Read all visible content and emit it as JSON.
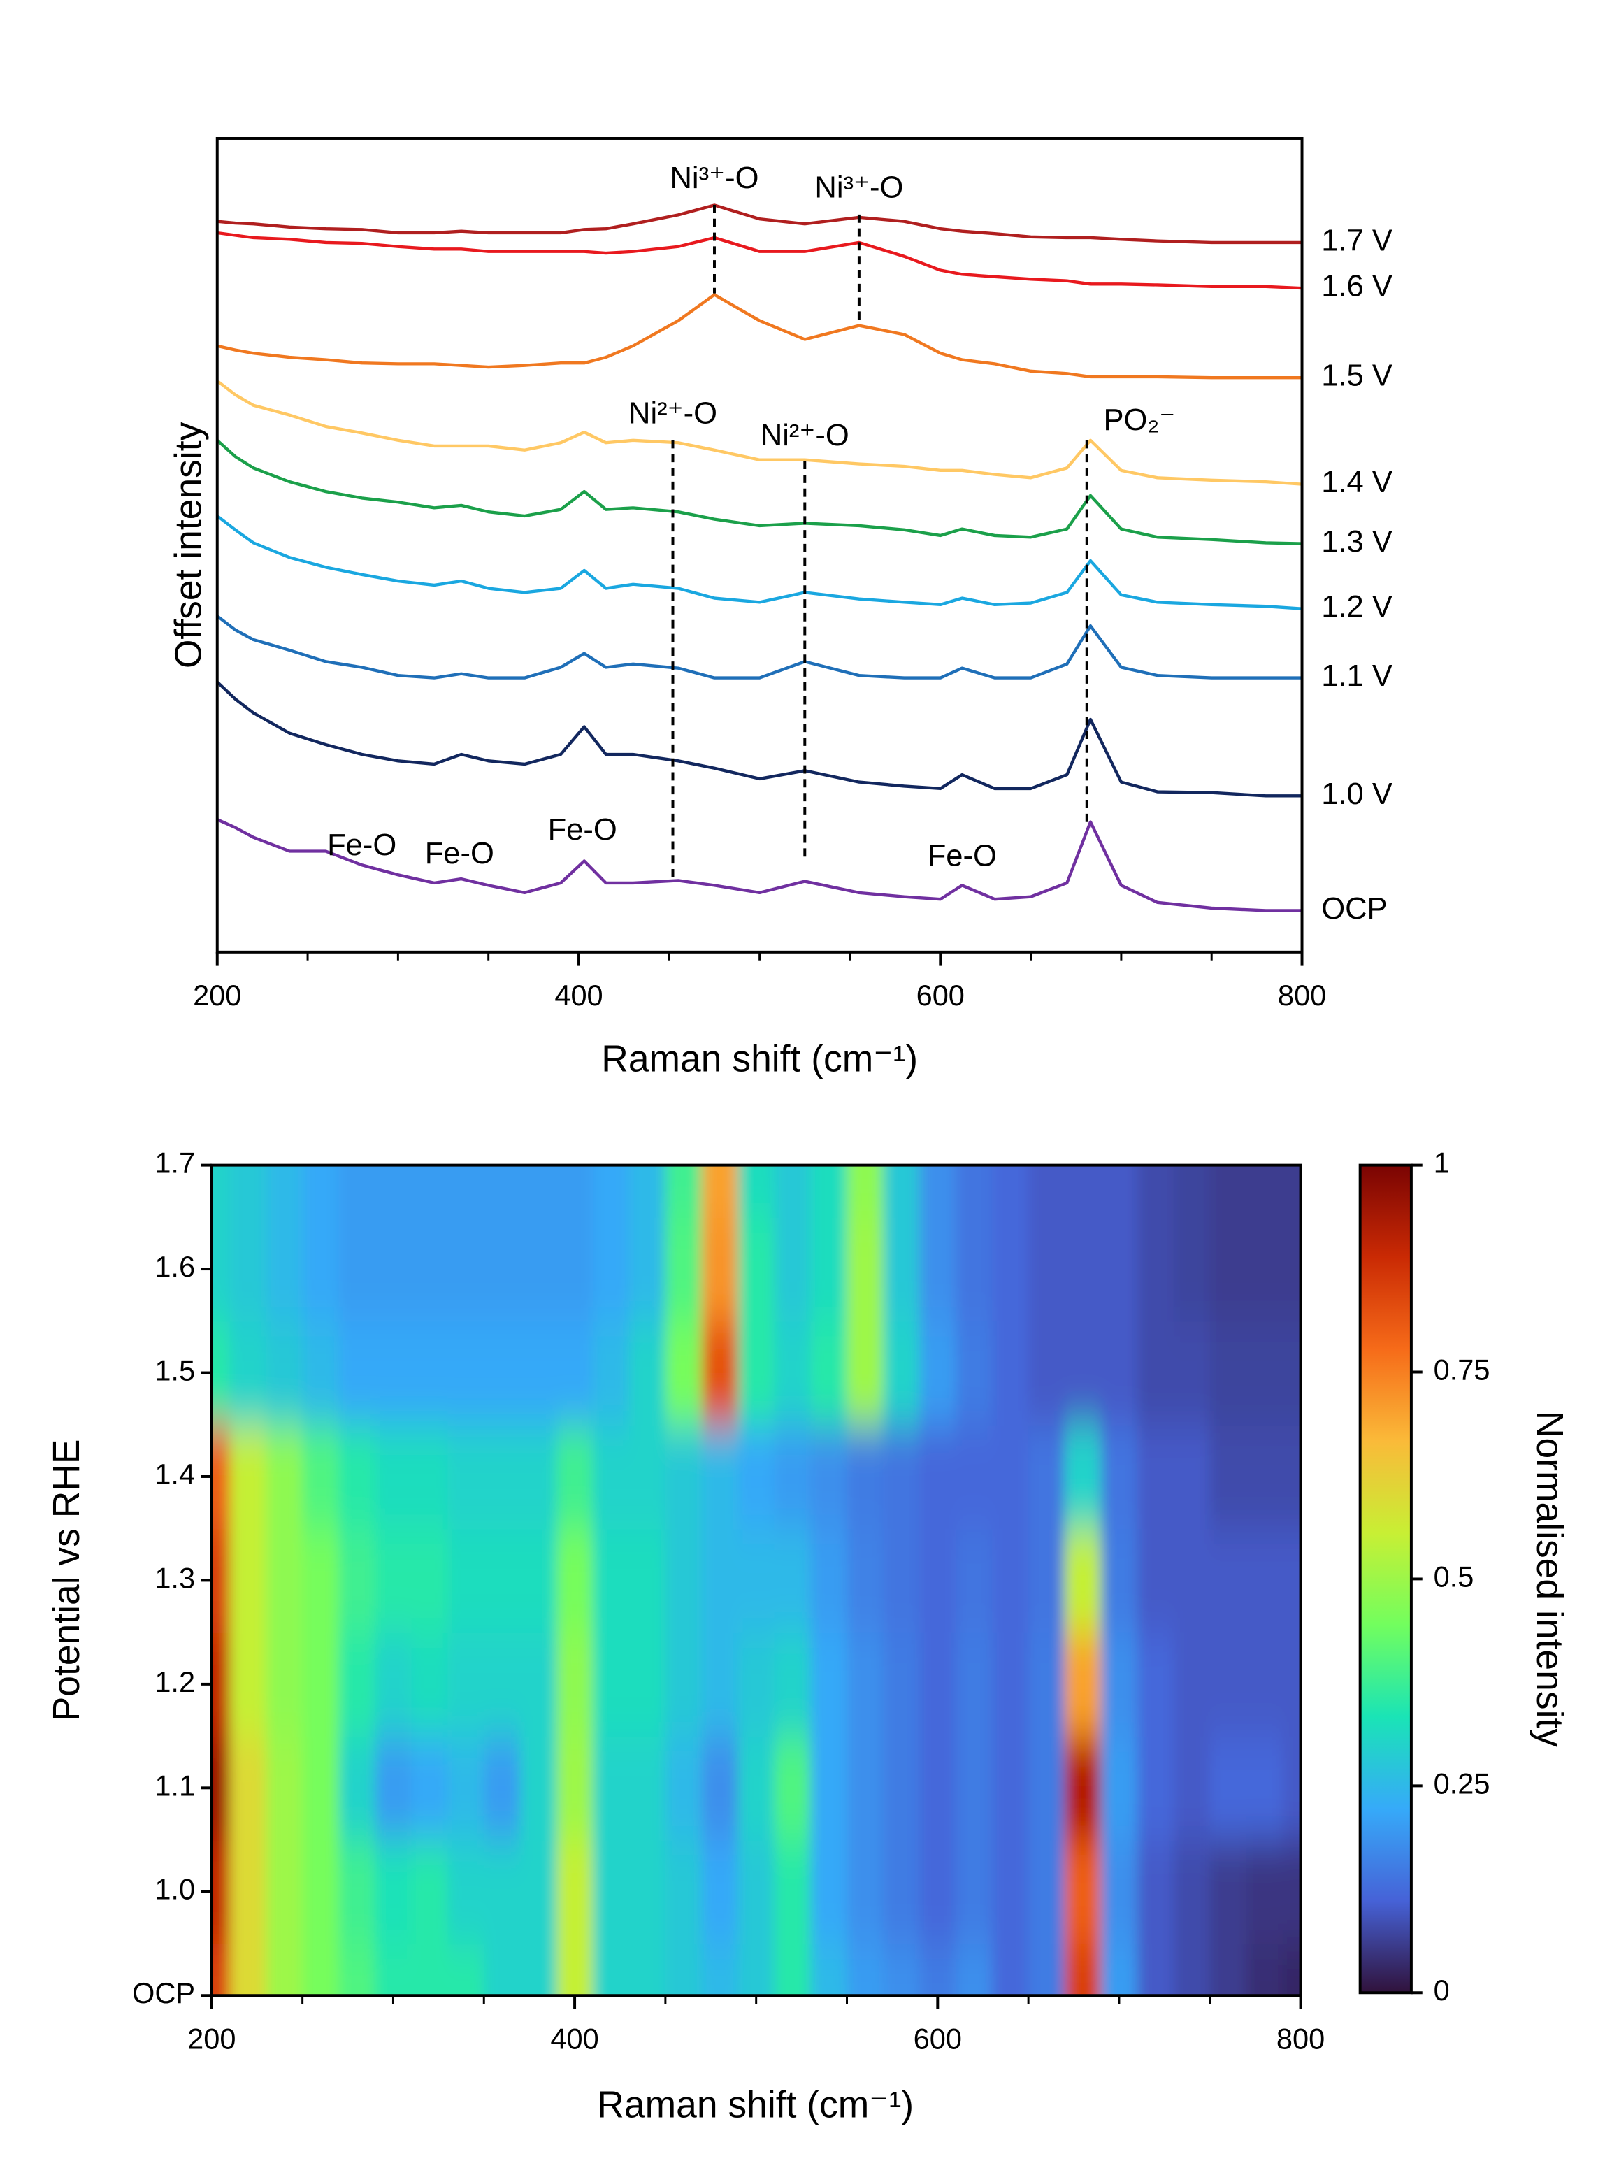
{
  "chart_data": [
    {
      "type": "line",
      "xlabel": "Raman shift (cm⁻¹)",
      "ylabel": "Offset intensity",
      "x": [
        200,
        210,
        220,
        240,
        260,
        280,
        300,
        320,
        335,
        350,
        370,
        390,
        403,
        415,
        430,
        455,
        475,
        500,
        525,
        555,
        580,
        600,
        612,
        630,
        650,
        670,
        683,
        700,
        720,
        750,
        780,
        800
      ],
      "xlim": [
        200,
        800
      ],
      "xticks": [
        200,
        400,
        600,
        800
      ],
      "xminorticks": [
        250,
        300,
        350,
        450,
        500,
        550,
        650,
        700,
        750
      ],
      "ylim": [
        0,
        100
      ],
      "series": [
        {
          "name": "1.7 V",
          "color": "#b01f1f",
          "values": [
            89.8,
            89.6,
            89.5,
            89.1,
            88.9,
            88.8,
            88.4,
            88.4,
            88.6,
            88.4,
            88.4,
            88.4,
            88.8,
            88.9,
            89.5,
            90.6,
            91.8,
            90.1,
            89.5,
            90.3,
            89.8,
            88.9,
            88.6,
            88.3,
            87.9,
            87.8,
            87.8,
            87.6,
            87.4,
            87.2,
            87.2,
            87.2
          ]
        },
        {
          "name": "1.6 V",
          "color": "#e8191e",
          "values": [
            88.4,
            88.1,
            87.8,
            87.6,
            87.2,
            87.1,
            86.7,
            86.4,
            86.4,
            86.1,
            86.1,
            86.1,
            86.1,
            85.9,
            86.1,
            86.7,
            87.8,
            86.1,
            86.1,
            87.2,
            85.5,
            83.8,
            83.3,
            83.0,
            82.7,
            82.5,
            82.1,
            82.1,
            82.0,
            81.8,
            81.8,
            81.6
          ]
        },
        {
          "name": "1.5 V",
          "color": "#f07820",
          "values": [
            74.5,
            74.0,
            73.6,
            73.1,
            72.8,
            72.4,
            72.3,
            72.3,
            72.1,
            71.9,
            72.1,
            72.4,
            72.4,
            73.1,
            74.5,
            77.6,
            80.8,
            77.6,
            75.3,
            77.0,
            75.9,
            73.6,
            72.8,
            72.3,
            71.4,
            71.1,
            70.7,
            70.7,
            70.7,
            70.6,
            70.6,
            70.6
          ]
        },
        {
          "name": "1.4 V",
          "color": "#ffc864",
          "values": [
            70.2,
            68.5,
            67.2,
            66.0,
            64.6,
            63.8,
            62.9,
            62.2,
            62.2,
            62.2,
            61.7,
            62.6,
            63.9,
            62.6,
            62.9,
            62.6,
            61.7,
            60.5,
            60.5,
            60.0,
            59.7,
            59.2,
            59.2,
            58.7,
            58.3,
            59.5,
            62.9,
            59.2,
            58.3,
            58.0,
            57.8,
            57.5
          ]
        },
        {
          "name": "1.3 V",
          "color": "#1ba04a",
          "values": [
            62.9,
            60.9,
            59.5,
            57.8,
            56.6,
            55.8,
            55.3,
            54.6,
            54.9,
            54.1,
            53.6,
            54.4,
            56.6,
            54.4,
            54.6,
            54.1,
            53.2,
            52.4,
            52.7,
            52.4,
            51.9,
            51.2,
            52.0,
            51.2,
            51.0,
            52.0,
            56.1,
            52.0,
            51.0,
            50.7,
            50.3,
            50.2
          ]
        },
        {
          "name": "1.2 V",
          "color": "#1aa7e0",
          "values": [
            53.6,
            51.9,
            50.3,
            48.5,
            47.3,
            46.4,
            45.6,
            45.1,
            45.6,
            44.7,
            44.2,
            44.7,
            46.9,
            44.7,
            45.2,
            44.7,
            43.5,
            43.0,
            44.2,
            43.4,
            43.0,
            42.7,
            43.5,
            42.7,
            42.9,
            44.2,
            48.1,
            43.9,
            43.0,
            42.7,
            42.5,
            42.2
          ]
        },
        {
          "name": "1.1 V",
          "color": "#1f6fb8",
          "values": [
            41.3,
            39.6,
            38.4,
            37.1,
            35.7,
            35.0,
            34.0,
            33.7,
            34.2,
            33.7,
            33.7,
            35.0,
            36.7,
            35.0,
            35.4,
            34.9,
            33.7,
            33.7,
            35.7,
            34.0,
            33.7,
            33.7,
            34.9,
            33.7,
            33.7,
            35.4,
            40.1,
            35.0,
            34.0,
            33.7,
            33.7,
            33.7
          ]
        },
        {
          "name": "1.0 V",
          "color": "#12275e",
          "values": [
            33.2,
            31.1,
            29.4,
            26.9,
            25.5,
            24.3,
            23.5,
            23.1,
            24.3,
            23.5,
            23.1,
            24.3,
            27.7,
            24.3,
            24.3,
            23.5,
            22.6,
            21.3,
            22.3,
            20.9,
            20.4,
            20.1,
            21.8,
            20.1,
            20.1,
            21.8,
            28.6,
            20.9,
            19.7,
            19.6,
            19.2,
            19.2
          ]
        },
        {
          "name": "OCP",
          "color": "#7030a0",
          "values": [
            16.3,
            15.3,
            14.1,
            12.4,
            12.4,
            10.7,
            9.5,
            8.5,
            9.0,
            8.2,
            7.3,
            8.5,
            11.2,
            8.5,
            8.5,
            8.8,
            8.2,
            7.3,
            8.7,
            7.3,
            6.8,
            6.5,
            8.2,
            6.5,
            6.8,
            8.5,
            16.0,
            8.2,
            6.1,
            5.4,
            5.1,
            5.1
          ]
        }
      ],
      "annotations": [
        {
          "text": "Ni³⁺-O",
          "x": 475,
          "dashed": true
        },
        {
          "text": "Ni³⁺-O",
          "x": 555,
          "dashed": true
        },
        {
          "text": "Ni²⁺-O",
          "x": 452,
          "dashed": true
        },
        {
          "text": "Ni²⁺-O",
          "x": 525,
          "dashed": true
        },
        {
          "text": "PO₂⁻",
          "x": 681,
          "dashed": true
        },
        {
          "text": "Fe-O",
          "x": 280,
          "dashed": false
        },
        {
          "text": "Fe-O",
          "x": 334,
          "dashed": false
        },
        {
          "text": "Fe-O",
          "x": 402,
          "dashed": false
        },
        {
          "text": "Fe-O",
          "x": 612,
          "dashed": false
        }
      ]
    },
    {
      "type": "heatmap",
      "xlabel": "Raman shift (cm⁻¹)",
      "ylabel": "Potential vs RHE",
      "zlabel": "Normalised intensity",
      "x": [
        200,
        220,
        240,
        260,
        280,
        300,
        320,
        340,
        360,
        380,
        400,
        420,
        440,
        460,
        480,
        500,
        520,
        540,
        560,
        580,
        600,
        620,
        640,
        660,
        680,
        700,
        720,
        740,
        760,
        780,
        800
      ],
      "xlim": [
        200,
        800
      ],
      "xticks": [
        200,
        400,
        600,
        800
      ],
      "xminorticks": [
        250,
        300,
        350,
        450,
        500,
        550,
        650,
        700,
        750
      ],
      "y": [
        "OCP",
        "1.0",
        "1.1",
        "1.2",
        "1.3",
        "1.4",
        "1.5",
        "1.6",
        "1.7"
      ],
      "z": [
        [
          0.85,
          0.6,
          0.5,
          0.45,
          0.4,
          0.35,
          0.35,
          0.35,
          0.3,
          0.3,
          0.55,
          0.3,
          0.3,
          0.28,
          0.25,
          0.28,
          0.35,
          0.25,
          0.2,
          0.18,
          0.15,
          0.18,
          0.12,
          0.15,
          0.85,
          0.2,
          0.1,
          0.08,
          0.06,
          0.04,
          0.03
        ],
        [
          0.9,
          0.6,
          0.5,
          0.45,
          0.38,
          0.33,
          0.35,
          0.3,
          0.3,
          0.3,
          0.55,
          0.3,
          0.3,
          0.28,
          0.22,
          0.28,
          0.35,
          0.22,
          0.18,
          0.15,
          0.12,
          0.15,
          0.12,
          0.15,
          0.8,
          0.18,
          0.1,
          0.08,
          0.06,
          0.05,
          0.05
        ],
        [
          0.95,
          0.6,
          0.5,
          0.45,
          0.3,
          0.2,
          0.22,
          0.25,
          0.2,
          0.3,
          0.5,
          0.3,
          0.3,
          0.25,
          0.18,
          0.3,
          0.4,
          0.22,
          0.18,
          0.15,
          0.12,
          0.15,
          0.12,
          0.15,
          0.92,
          0.2,
          0.12,
          0.1,
          0.12,
          0.12,
          0.1
        ],
        [
          0.9,
          0.55,
          0.48,
          0.45,
          0.35,
          0.3,
          0.32,
          0.3,
          0.3,
          0.3,
          0.48,
          0.32,
          0.32,
          0.28,
          0.25,
          0.28,
          0.3,
          0.22,
          0.18,
          0.15,
          0.12,
          0.15,
          0.12,
          0.15,
          0.7,
          0.18,
          0.12,
          0.1,
          0.1,
          0.1,
          0.1
        ],
        [
          0.85,
          0.55,
          0.48,
          0.45,
          0.38,
          0.35,
          0.35,
          0.32,
          0.32,
          0.32,
          0.45,
          0.32,
          0.32,
          0.28,
          0.25,
          0.25,
          0.25,
          0.2,
          0.16,
          0.14,
          0.12,
          0.14,
          0.12,
          0.14,
          0.55,
          0.15,
          0.1,
          0.1,
          0.1,
          0.1,
          0.1
        ],
        [
          0.8,
          0.55,
          0.48,
          0.4,
          0.35,
          0.32,
          0.32,
          0.3,
          0.3,
          0.3,
          0.38,
          0.3,
          0.3,
          0.28,
          0.25,
          0.22,
          0.2,
          0.18,
          0.15,
          0.14,
          0.12,
          0.12,
          0.12,
          0.14,
          0.3,
          0.14,
          0.1,
          0.1,
          0.08,
          0.08,
          0.08
        ],
        [
          0.35,
          0.3,
          0.28,
          0.25,
          0.22,
          0.22,
          0.22,
          0.22,
          0.22,
          0.22,
          0.22,
          0.25,
          0.3,
          0.45,
          0.82,
          0.35,
          0.3,
          0.35,
          0.5,
          0.3,
          0.2,
          0.15,
          0.12,
          0.1,
          0.1,
          0.1,
          0.08,
          0.08,
          0.07,
          0.07,
          0.07
        ],
        [
          0.3,
          0.28,
          0.25,
          0.22,
          0.2,
          0.2,
          0.2,
          0.2,
          0.2,
          0.2,
          0.2,
          0.22,
          0.25,
          0.4,
          0.72,
          0.35,
          0.28,
          0.32,
          0.5,
          0.28,
          0.18,
          0.14,
          0.12,
          0.1,
          0.1,
          0.1,
          0.08,
          0.07,
          0.06,
          0.06,
          0.06
        ],
        [
          0.3,
          0.28,
          0.25,
          0.22,
          0.2,
          0.2,
          0.2,
          0.2,
          0.2,
          0.2,
          0.2,
          0.22,
          0.25,
          0.38,
          0.7,
          0.32,
          0.28,
          0.32,
          0.48,
          0.28,
          0.18,
          0.14,
          0.12,
          0.1,
          0.1,
          0.1,
          0.08,
          0.07,
          0.06,
          0.06,
          0.06
        ]
      ],
      "zlim": [
        0,
        1
      ],
      "zticks": [
        0,
        0.25,
        0.5,
        0.75,
        1
      ],
      "colorscale": [
        "#30123b",
        "#4662d7",
        "#36aaf9",
        "#1ae4b6",
        "#72fe5e",
        "#c8ef34",
        "#faba39",
        "#f66b19",
        "#ca2a04",
        "#7a0403"
      ]
    }
  ]
}
